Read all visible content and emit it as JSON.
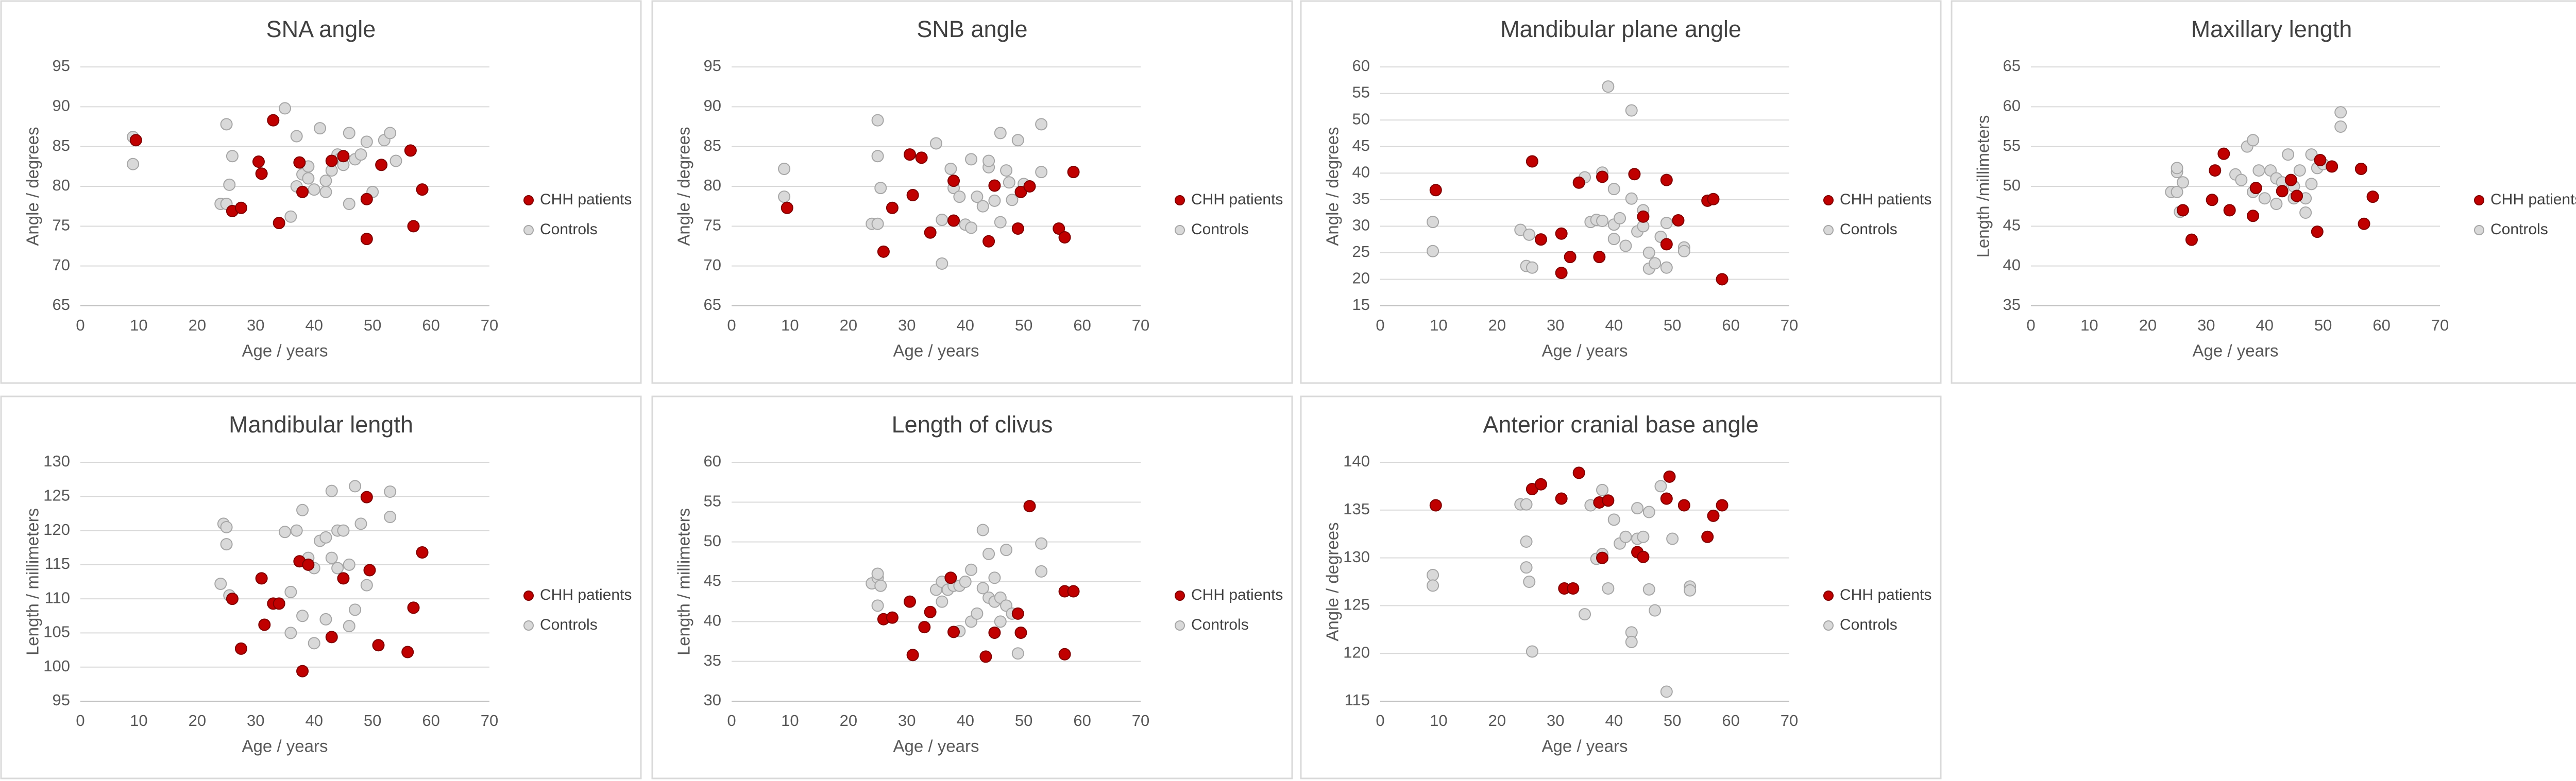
{
  "chart_data": [
    {
      "type": "scatter",
      "title": "SNA angle",
      "xlabel": "Age / years",
      "ylabel": "Angle / degrees",
      "xlim": [
        0,
        70
      ],
      "xticks": [
        0,
        10,
        20,
        30,
        40,
        50,
        60,
        70
      ],
      "ylim": [
        65,
        95
      ],
      "yticks": [
        65,
        70,
        75,
        80,
        85,
        90,
        95
      ],
      "grid": true,
      "legend": "right",
      "series": [
        {
          "name": "CHH patients",
          "color": "#c00000",
          "x": [
            9.5,
            26,
            27.5,
            30.5,
            31,
            33,
            34,
            37.5,
            38,
            43,
            45,
            49,
            49,
            51.5,
            56.5,
            57,
            58.5
          ],
          "values": [
            85.8,
            76.9,
            77.3,
            83.1,
            81.6,
            88.3,
            75.4,
            83,
            79.3,
            83.2,
            83.8,
            78.4,
            73.4,
            82.7,
            84.5,
            75,
            79.6
          ]
        },
        {
          "name": "Controls",
          "color": "#d9d9d9",
          "x": [
            9,
            9,
            24,
            25,
            25,
            25.5,
            26,
            35,
            36,
            37,
            37,
            38,
            39,
            39,
            40,
            41,
            42,
            42,
            43,
            44,
            44.5,
            45,
            46,
            46,
            47,
            48,
            49,
            50,
            52,
            53,
            54
          ],
          "values": [
            86.2,
            82.8,
            77.8,
            77.8,
            87.8,
            80.2,
            83.8,
            89.8,
            76.2,
            86.3,
            80,
            81.5,
            81,
            82.5,
            79.6,
            87.3,
            80.7,
            79.3,
            82,
            84,
            83.5,
            82.7,
            86.7,
            77.8,
            83.4,
            84,
            85.6,
            79.3,
            85.8,
            86.7,
            83.2
          ]
        }
      ]
    },
    {
      "type": "scatter",
      "title": "SNB angle",
      "xlabel": "Age / years",
      "ylabel": "Angle / degrees",
      "xlim": [
        0,
        70
      ],
      "xticks": [
        0,
        10,
        20,
        30,
        40,
        50,
        60,
        70
      ],
      "ylim": [
        65,
        95
      ],
      "yticks": [
        65,
        70,
        75,
        80,
        85,
        90,
        95
      ],
      "grid": true,
      "legend": "right",
      "series": [
        {
          "name": "CHH patients",
          "color": "#c00000",
          "x": [
            9.5,
            26,
            27.5,
            30.5,
            31,
            32.5,
            34,
            38,
            38,
            44,
            45,
            49,
            49.5,
            51,
            56,
            57,
            58.5
          ],
          "values": [
            77.3,
            71.8,
            77.3,
            84,
            78.9,
            83.6,
            74.2,
            80.7,
            75.7,
            73.1,
            80.1,
            74.7,
            79.3,
            80,
            74.7,
            73.6,
            81.8
          ]
        },
        {
          "name": "Controls",
          "color": "#d9d9d9",
          "x": [
            9,
            9,
            24,
            25,
            25,
            25,
            25.5,
            35,
            36,
            36,
            37.5,
            38,
            39,
            40,
            41,
            42,
            43,
            44,
            44,
            45,
            46,
            46,
            47,
            48,
            49,
            50,
            53,
            53,
            41,
            47.5
          ],
          "values": [
            82.2,
            78.7,
            75.3,
            75.3,
            83.8,
            88.3,
            79.8,
            85.4,
            70.3,
            75.8,
            82.2,
            79.8,
            78.7,
            75.2,
            83.4,
            78.7,
            77.5,
            82.4,
            83.2,
            78.2,
            86.7,
            75.5,
            82,
            78.3,
            85.8,
            80.3,
            87.8,
            81.8,
            74.8,
            80.5
          ]
        }
      ]
    },
    {
      "type": "scatter",
      "title": "Mandibular plane angle",
      "xlabel": "Age / years",
      "ylabel": "Angle / degrees",
      "xlim": [
        0,
        70
      ],
      "xticks": [
        0,
        10,
        20,
        30,
        40,
        50,
        60,
        70
      ],
      "ylim": [
        15,
        60
      ],
      "yticks": [
        15,
        20,
        25,
        30,
        35,
        40,
        45,
        50,
        55,
        60
      ],
      "grid": true,
      "legend": "right",
      "series": [
        {
          "name": "CHH patients",
          "color": "#c00000",
          "x": [
            9.5,
            26,
            27.5,
            31,
            31,
            32.5,
            34,
            37.5,
            38,
            43.5,
            45,
            49,
            49,
            51,
            56,
            57,
            58.5
          ],
          "values": [
            36.8,
            42.2,
            27.5,
            28.6,
            21.2,
            24.2,
            38.2,
            24.2,
            39.3,
            39.8,
            31.8,
            38.7,
            26.6,
            31.1,
            34.8,
            35.1,
            20
          ]
        },
        {
          "name": "Controls",
          "color": "#d9d9d9",
          "x": [
            9,
            9,
            24,
            25,
            25.5,
            26,
            35,
            36,
            37,
            38,
            38,
            39,
            40,
            40,
            41,
            42,
            43,
            43,
            44,
            45,
            45,
            46,
            46,
            47,
            48,
            49,
            49,
            52,
            52,
            40
          ],
          "values": [
            30.8,
            25.3,
            29.3,
            22.5,
            28.4,
            22.2,
            39.2,
            30.8,
            31.2,
            31,
            40.1,
            56.3,
            30.3,
            27.6,
            31.5,
            26.3,
            51.8,
            35.2,
            29,
            33,
            30,
            22,
            25,
            23,
            28,
            22.2,
            30.6,
            26,
            25.3,
            37
          ]
        }
      ]
    },
    {
      "type": "scatter",
      "title": "Maxillary length",
      "xlabel": "Age / years",
      "ylabel": "Length /millimeters",
      "xlim": [
        0,
        70
      ],
      "xticks": [
        0,
        10,
        20,
        30,
        40,
        50,
        60,
        70
      ],
      "ylim": [
        35,
        65
      ],
      "yticks": [
        35,
        40,
        45,
        50,
        55,
        60,
        65
      ],
      "grid": true,
      "legend": "right",
      "series": [
        {
          "name": "CHH patients",
          "color": "#c00000",
          "x": [
            26,
            27.5,
            31,
            31.5,
            33,
            34,
            38,
            38.5,
            43,
            44.5,
            45.5,
            49,
            49.5,
            51.5,
            56.5,
            57,
            58.5
          ],
          "values": [
            47,
            43.3,
            48.3,
            52,
            54.1,
            47,
            46.3,
            49.8,
            49.4,
            50.8,
            48.8,
            44.3,
            53.3,
            52.5,
            52.2,
            45.3,
            48.7
          ]
        },
        {
          "name": "Controls",
          "color": "#d9d9d9",
          "x": [
            24,
            25,
            25,
            25,
            25.5,
            26,
            35,
            36,
            37,
            38,
            38,
            39,
            40,
            41,
            42,
            42,
            43,
            44,
            45,
            45,
            46,
            47,
            47,
            48,
            49,
            50,
            53,
            53,
            48
          ],
          "values": [
            49.3,
            49.3,
            51.8,
            52.3,
            46.8,
            50.5,
            51.5,
            50.8,
            55,
            55.8,
            49.3,
            52,
            48.5,
            52,
            51,
            47.8,
            50.5,
            54,
            48.5,
            50,
            52,
            48.5,
            46.7,
            50.3,
            52.3,
            52.8,
            57.5,
            59.3,
            54
          ]
        }
      ]
    },
    {
      "type": "scatter",
      "title": "Mandibular length",
      "xlabel": "Age / years",
      "ylabel": "Length / millimeters",
      "xlim": [
        0,
        70
      ],
      "xticks": [
        0,
        10,
        20,
        30,
        40,
        50,
        60,
        70
      ],
      "ylim": [
        95,
        130
      ],
      "yticks": [
        95,
        100,
        105,
        110,
        115,
        120,
        125,
        130
      ],
      "grid": true,
      "legend": "right",
      "series": [
        {
          "name": "CHH patients",
          "color": "#c00000",
          "x": [
            26,
            27.5,
            31,
            31.5,
            33,
            34,
            37.5,
            38,
            39,
            43,
            45,
            49,
            49.5,
            51,
            56,
            57,
            58.5
          ],
          "values": [
            110,
            102.7,
            113,
            106.2,
            109.3,
            109.3,
            115.5,
            99.4,
            115,
            104.4,
            113,
            124.9,
            114.2,
            103.2,
            102.2,
            108.7,
            116.8
          ]
        },
        {
          "name": "Controls",
          "color": "#d9d9d9",
          "x": [
            24,
            24.5,
            25,
            25,
            25.5,
            35,
            36,
            36,
            37,
            38,
            38,
            39,
            40,
            41,
            42,
            42,
            43,
            43,
            44,
            45,
            46,
            46,
            47,
            47,
            48,
            49,
            53,
            53,
            44,
            40
          ],
          "values": [
            112.2,
            121,
            120.5,
            118,
            110.5,
            119.8,
            111,
            105,
            120,
            107.5,
            123,
            116,
            114.5,
            118.5,
            119,
            107,
            125.8,
            116,
            120,
            120,
            106,
            115,
            126.5,
            108.4,
            121,
            112,
            125.7,
            122,
            114.5,
            103.5
          ]
        }
      ]
    },
    {
      "type": "scatter",
      "title": "Length of clivus",
      "xlabel": "Age / years",
      "ylabel": "Length / millimeters",
      "xlim": [
        0,
        70
      ],
      "xticks": [
        0,
        10,
        20,
        30,
        40,
        50,
        60,
        70
      ],
      "ylim": [
        30,
        60
      ],
      "yticks": [
        30,
        35,
        40,
        45,
        50,
        55,
        60
      ],
      "grid": true,
      "legend": "right",
      "series": [
        {
          "name": "CHH patients",
          "color": "#c00000",
          "x": [
            26,
            27.5,
            30.5,
            31,
            33,
            34,
            37.5,
            38,
            43.5,
            45,
            49,
            49.5,
            51,
            57,
            57,
            58.5
          ],
          "values": [
            40.3,
            40.5,
            42.5,
            35.8,
            39.3,
            41.2,
            45.5,
            38.7,
            35.6,
            38.6,
            41,
            38.6,
            54.5,
            43.8,
            35.9,
            43.8
          ]
        },
        {
          "name": "Controls",
          "color": "#d9d9d9",
          "x": [
            24,
            25,
            25,
            25,
            25.5,
            35,
            36,
            36,
            37,
            38,
            39,
            39,
            40,
            41,
            41,
            42,
            43,
            43,
            44,
            44,
            45,
            46,
            46,
            47,
            47,
            48,
            49,
            53,
            53,
            45
          ],
          "values": [
            44.8,
            45.5,
            46,
            42,
            44.5,
            44,
            45,
            42.5,
            44,
            44.5,
            38.8,
            44.5,
            45,
            46.5,
            40,
            41,
            51.5,
            44.2,
            48.5,
            43,
            42.5,
            43,
            40,
            49,
            42,
            41,
            36,
            49.8,
            46.3,
            45.5
          ]
        }
      ]
    },
    {
      "type": "scatter",
      "title": "Anterior cranial base angle",
      "xlabel": "Age / years",
      "ylabel": "Angle / degrees",
      "xlim": [
        0,
        70
      ],
      "xticks": [
        0,
        10,
        20,
        30,
        40,
        50,
        60,
        70
      ],
      "ylim": [
        115,
        140
      ],
      "yticks": [
        115,
        120,
        125,
        130,
        135,
        140
      ],
      "grid": true,
      "legend": "right",
      "series": [
        {
          "name": "CHH patients",
          "color": "#c00000",
          "x": [
            9.5,
            26,
            27.5,
            31,
            31.5,
            33,
            34,
            37.5,
            38,
            39,
            44,
            45,
            49,
            49.5,
            52,
            56,
            57,
            58.5
          ],
          "values": [
            135.5,
            137.2,
            137.7,
            136.2,
            126.8,
            126.8,
            138.9,
            135.8,
            130,
            136,
            130.6,
            130.1,
            136.2,
            138.5,
            135.5,
            132.2,
            134.4,
            135.5
          ]
        },
        {
          "name": "Controls",
          "color": "#d9d9d9",
          "x": [
            9,
            9,
            24,
            25,
            25,
            25,
            25.5,
            26,
            35,
            36,
            37,
            38,
            38,
            39,
            40,
            41,
            42,
            43,
            43,
            44,
            44,
            45,
            46,
            46,
            47,
            48,
            49,
            50,
            53,
            53
          ],
          "values": [
            128.2,
            127.1,
            135.6,
            135.6,
            131.7,
            129,
            127.5,
            120.2,
            124.1,
            135.5,
            129.9,
            137.1,
            130.4,
            126.8,
            134,
            131.5,
            132.2,
            122.2,
            121.2,
            132,
            135.2,
            132.2,
            134.8,
            126.7,
            124.5,
            137.5,
            116,
            132,
            127,
            126.6
          ]
        }
      ]
    }
  ]
}
